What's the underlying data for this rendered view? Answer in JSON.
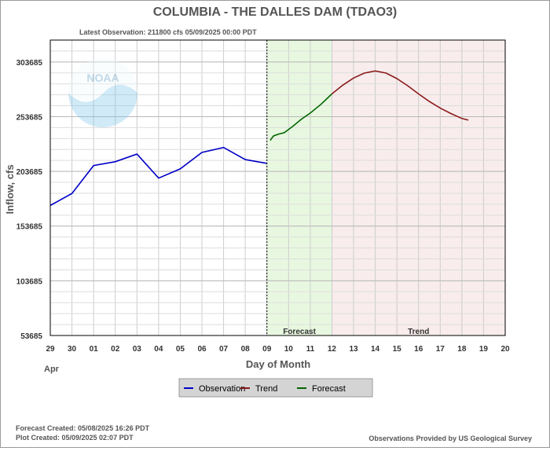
{
  "chart_data": {
    "type": "line",
    "title": "COLUMBIA - THE DALLES DAM  (TDAO3)",
    "subtitle": "Latest Observation: 211800 cfs 05/09/2025 00:00 PDT",
    "xlabel": "Day of Month",
    "ylabel": "Inflow, cfs",
    "month_label": "Apr",
    "x_ticks": [
      "29",
      "30",
      "01",
      "02",
      "03",
      "04",
      "05",
      "06",
      "07",
      "08",
      "09",
      "10",
      "11",
      "12",
      "13",
      "14",
      "15",
      "16",
      "17",
      "18",
      "19",
      "20"
    ],
    "y_ticks": [
      53685,
      103685,
      153685,
      203685,
      253685,
      303685
    ],
    "ylim": [
      53685,
      323685
    ],
    "grid": true,
    "regions": [
      {
        "name": "forecast",
        "label": "Forecast",
        "from": "09",
        "to": "12",
        "color": "#e8f8e0"
      },
      {
        "name": "trend",
        "label": "Trend",
        "from": "12",
        "to": "20",
        "color": "#f8ecec"
      }
    ],
    "series": [
      {
        "name": "Observation",
        "color": "#0000c8",
        "x": [
          0,
          1,
          2,
          3,
          4,
          5,
          6,
          7,
          8,
          9,
          10
        ],
        "values": [
          172500,
          183500,
          209000,
          212500,
          219500,
          197500,
          206000,
          221000,
          225500,
          214500,
          211000
        ]
      },
      {
        "name": "Forecast",
        "color": "#006400",
        "x": [
          10.15,
          10.3,
          10.5,
          10.8,
          11.2,
          11.6,
          12.0,
          12.5,
          13.0
        ],
        "values": [
          232000,
          236000,
          237500,
          239000,
          245000,
          251500,
          257000,
          265000,
          274500
        ]
      },
      {
        "name": "Trend",
        "color": "#8b1a1a",
        "x": [
          13.0,
          13.5,
          14.0,
          14.5,
          15.0,
          15.5,
          16.0,
          16.5,
          17.0,
          17.5,
          18.0,
          18.5,
          19.0,
          19.3
        ],
        "values": [
          274500,
          282500,
          289000,
          293500,
          295500,
          293500,
          288500,
          282000,
          274500,
          267500,
          261500,
          256500,
          252000,
          250500
        ]
      }
    ]
  },
  "legend": {
    "items": [
      {
        "label": "Observation",
        "color": "#0000c8"
      },
      {
        "label": "Trend",
        "color": "#8b1a1a"
      },
      {
        "label": "Forecast",
        "color": "#006400"
      }
    ]
  },
  "logo_text": "NOAA",
  "footer": {
    "forecast_created": "Forecast Created: 05/08/2025 16:26 PDT",
    "plot_created": "Plot Created: 05/09/2025 02:07 PDT",
    "provider": "Observations Provided by US Geological Survey"
  }
}
